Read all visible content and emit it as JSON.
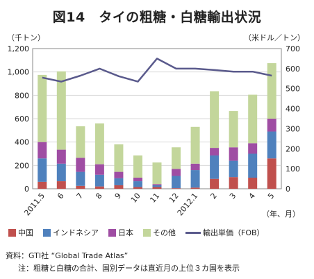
{
  "title": "図14　タイの粗糖・白糖輸出状況",
  "units": {
    "left": "（千トン）",
    "right": "（米ドル／トン）"
  },
  "notes": {
    "source": "資料：GTI社 “Global Trade Atlas”",
    "note": "注：粗糖と白糖の合計、国別データは直近月の上位３カ国を表示"
  },
  "colors": {
    "china": "#c0504d",
    "indonesia": "#4f81bd",
    "japan": "#9f4da3",
    "other": "#c3d69b",
    "line": "#5a5a8c",
    "grid": "#d9d9d9",
    "axis": "#888888"
  },
  "chart_data": {
    "type": "bar",
    "stacked": true,
    "values_estimated_from_gridlines": true,
    "categories": [
      "2011.5",
      "6",
      "7",
      "8",
      "9",
      "10",
      "11",
      "12",
      "2012.1",
      "2",
      "3",
      "4",
      "5"
    ],
    "xlabel": "（年、月）",
    "ylabel_left": "（千トン）",
    "ylabel_right": "（米ドル／トン）",
    "ylim_left": [
      0,
      1200
    ],
    "yticks_left": [
      "0",
      "200",
      "400",
      "600",
      "800",
      "1,000",
      "1,200"
    ],
    "ylim_right": [
      0,
      700
    ],
    "yticks_right": [
      "0",
      "100",
      "200",
      "300",
      "400",
      "500",
      "600",
      "700"
    ],
    "grid": true,
    "legend_position": "bottom",
    "series": [
      {
        "name": "中国",
        "key": "china",
        "axis": "left",
        "values": [
          60,
          65,
          25,
          20,
          30,
          15,
          15,
          5,
          10,
          85,
          100,
          95,
          260
        ]
      },
      {
        "name": "インドネシア",
        "key": "indonesia",
        "axis": "left",
        "values": [
          200,
          150,
          120,
          100,
          60,
          50,
          15,
          105,
          150,
          200,
          140,
          205,
          230
        ]
      },
      {
        "name": "日本",
        "key": "japan",
        "axis": "left",
        "values": [
          140,
          120,
          120,
          90,
          55,
          30,
          10,
          60,
          55,
          65,
          115,
          90,
          110
        ]
      },
      {
        "name": "その他",
        "key": "other",
        "axis": "left",
        "values": [
          575,
          670,
          270,
          350,
          235,
          190,
          185,
          185,
          315,
          485,
          310,
          415,
          475
        ]
      }
    ],
    "line_series": {
      "name": "輸出単価（FOB）",
      "axis": "right",
      "values": [
        555,
        535,
        565,
        600,
        562,
        535,
        650,
        600,
        600,
        593,
        585,
        585,
        565
      ]
    }
  }
}
